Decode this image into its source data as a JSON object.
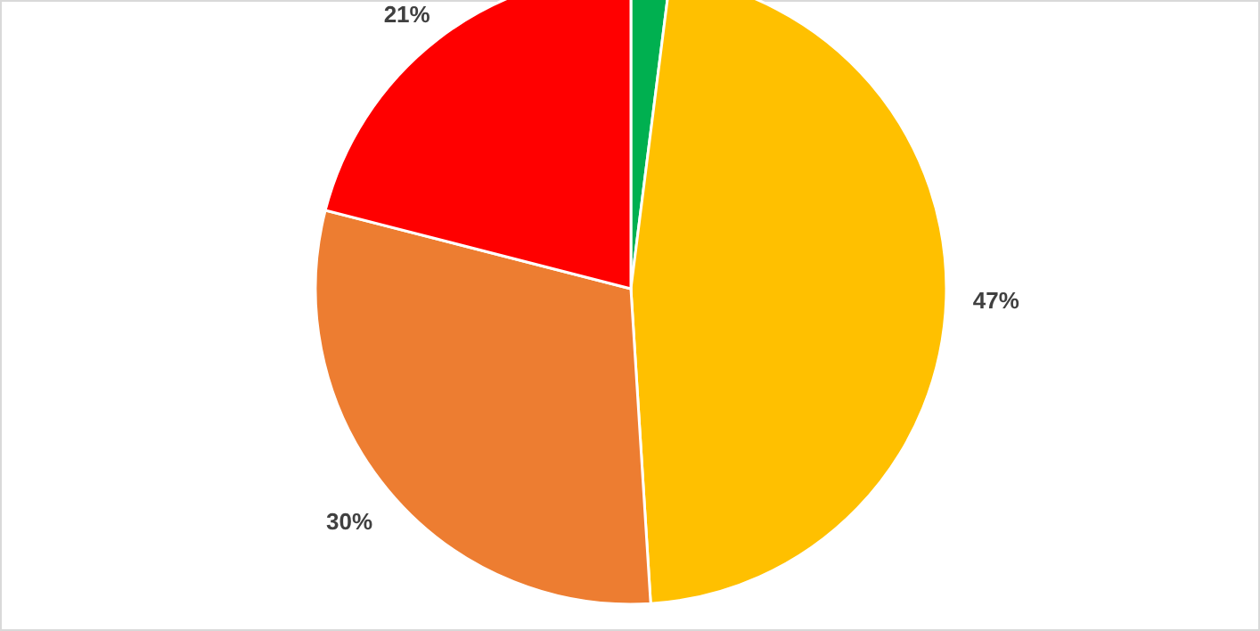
{
  "chart_data": {
    "type": "pie",
    "categories": [
      null,
      null,
      null,
      null
    ],
    "values": [
      2,
      47,
      30,
      21
    ],
    "colors": [
      "#00b050",
      "#ffc000",
      "#ed7d31",
      "#ff0000"
    ],
    "value_labels": [
      null,
      "47%",
      "30%",
      "21%"
    ]
  }
}
